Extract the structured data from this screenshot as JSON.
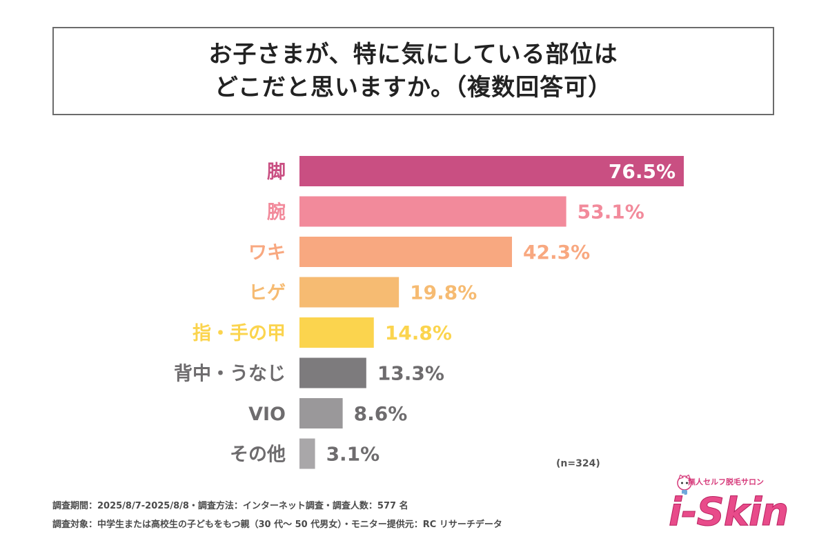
{
  "title": {
    "line1": "お子さまが、特に気にしている部位は",
    "line2": "どこだと思いますか。（複数回答可）"
  },
  "chart_data": {
    "type": "bar",
    "orientation": "horizontal",
    "categories": [
      "脚",
      "腕",
      "ワキ",
      "ヒゲ",
      "指・手の甲",
      "背中・うなじ",
      "VIO",
      "その他"
    ],
    "values": [
      76.5,
      53.1,
      42.3,
      19.8,
      14.8,
      13.3,
      8.6,
      3.1
    ],
    "value_labels": [
      "76.5%",
      "53.1%",
      "42.3%",
      "19.8%",
      "14.8%",
      "13.3%",
      "8.6%",
      "3.1%"
    ],
    "colors": [
      "#c94f82",
      "#f28a9b",
      "#f8a880",
      "#f6bb72",
      "#fbd44e",
      "#7d7b7d",
      "#9a989a",
      "#a9a7a9"
    ],
    "label_colors": [
      "#c94f82",
      "#f28a9b",
      "#f8a880",
      "#f6bb72",
      "#fbd44e",
      "#6e6c6e",
      "#6e6c6e",
      "#6e6c6e"
    ],
    "xlim": [
      0,
      76.5
    ],
    "unit": "%"
  },
  "note": "(n=324)",
  "footer": {
    "line1": "調査期間：2025/8/7-2025/8/8・調査方法：インターネット調査・調査人数：577 名",
    "line2": "調査対象：中学生または高校生の子どもをもつ親（30 代〜 50 代男女）・モニター提供元：RC リサーチデータ"
  },
  "logo": {
    "tagline": "無人セルフ脱毛サロン",
    "brand": "i-Skin"
  }
}
